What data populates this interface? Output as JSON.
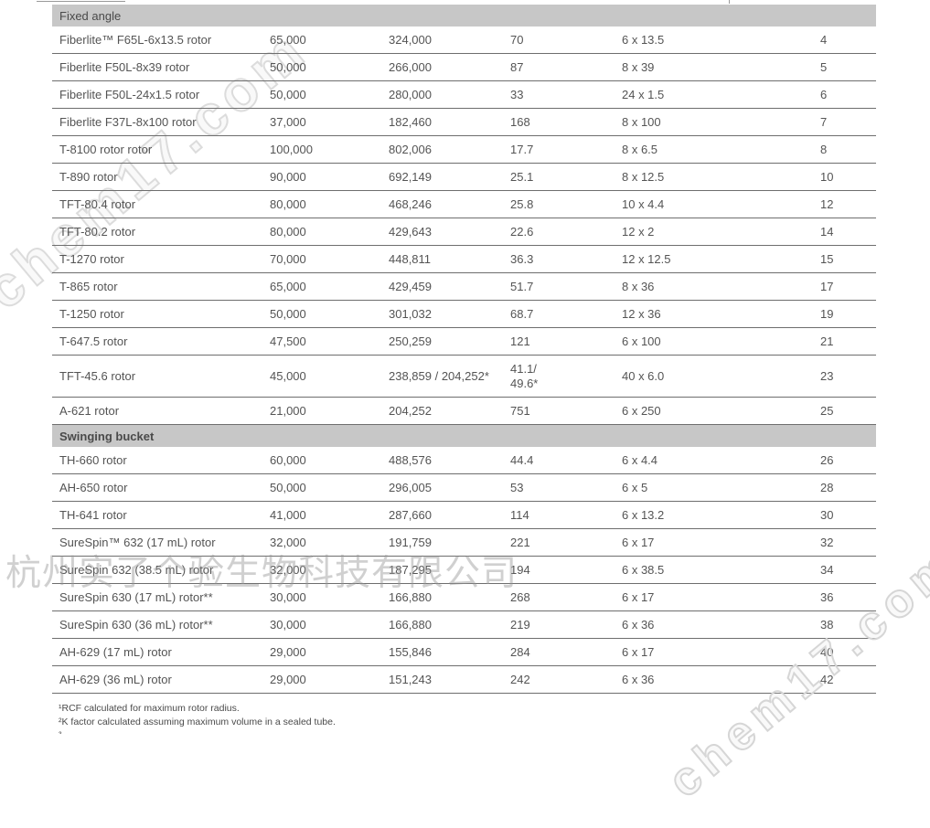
{
  "table": {
    "sections": [
      {
        "label": "Fixed angle",
        "bold": false,
        "rows": [
          {
            "name": "Fiberlite™ F65L-6x13.5 rotor",
            "speed": "65,000",
            "rcf": "324,000",
            "k": "70",
            "tubes": "6 x 13.5",
            "page": "4"
          },
          {
            "name": "Fiberlite F50L-8x39 rotor",
            "speed": "50,000",
            "rcf": "266,000",
            "k": "87",
            "tubes": "8 x 39",
            "page": "5"
          },
          {
            "name": "Fiberlite F50L-24x1.5 rotor",
            "speed": "50,000",
            "rcf": "280,000",
            "k": "33",
            "tubes": "24 x 1.5",
            "page": "6"
          },
          {
            "name": "Fiberlite F37L-8x100 rotor",
            "speed": "37,000",
            "rcf": "182,460",
            "k": "168",
            "tubes": "8 x 100",
            "page": "7"
          },
          {
            "name": "T-8100 rotor rotor",
            "speed": "100,000",
            "rcf": "802,006",
            "k": "17.7",
            "tubes": "8 x 6.5",
            "page": "8"
          },
          {
            "name": "T-890 rotor",
            "speed": "90,000",
            "rcf": "692,149",
            "k": "25.1",
            "tubes": "8 x 12.5",
            "page": "10"
          },
          {
            "name": "TFT-80.4 rotor",
            "speed": "80,000",
            "rcf": "468,246",
            "k": "25.8",
            "tubes": "10 x 4.4",
            "page": "12"
          },
          {
            "name": "TFT-80.2 rotor",
            "speed": "80,000",
            "rcf": "429,643",
            "k": "22.6",
            "tubes": "12 x 2",
            "page": "14"
          },
          {
            "name": "T-1270 rotor",
            "speed": "70,000",
            "rcf": "448,811",
            "k": "36.3",
            "tubes": "12 x 12.5",
            "page": "15"
          },
          {
            "name": "T-865 rotor",
            "speed": "65,000",
            "rcf": "429,459",
            "k": "51.7",
            "tubes": "8 x 36",
            "page": "17"
          },
          {
            "name": "T-1250 rotor",
            "speed": "50,000",
            "rcf": "301,032",
            "k": "68.7",
            "tubes": "12 x 36",
            "page": "19"
          },
          {
            "name": "T-647.5 rotor",
            "speed": "47,500",
            "rcf": "250,259",
            "k": "121",
            "tubes": "6 x 100",
            "page": "21"
          },
          {
            "name": "TFT-45.6 rotor",
            "speed": "45,000",
            "rcf": "238,859 / 204,252*",
            "k": "41.1/\n49.6*",
            "tubes": "40 x 6.0",
            "page": "23",
            "tall": true
          },
          {
            "name": "A-621 rotor",
            "speed": "21,000",
            "rcf": "204,252",
            "k": "751",
            "tubes": "6 x 250",
            "page": "25"
          }
        ]
      },
      {
        "label": "Swinging bucket",
        "bold": true,
        "rows": [
          {
            "name": "TH-660 rotor",
            "speed": "60,000",
            "rcf": "488,576",
            "k": "44.4",
            "tubes": "6 x 4.4",
            "page": "26"
          },
          {
            "name": "AH-650 rotor",
            "speed": "50,000",
            "rcf": "296,005",
            "k": "53",
            "tubes": "6 x 5",
            "page": "28"
          },
          {
            "name": "TH-641 rotor",
            "speed": "41,000",
            "rcf": "287,660",
            "k": "114",
            "tubes": "6 x 13.2",
            "page": "30"
          },
          {
            "name": "SureSpin™ 632 (17 mL) rotor",
            "speed": "32,000",
            "rcf": "191,759",
            "k": "221",
            "tubes": "6 x 17",
            "page": "32"
          },
          {
            "name": "SureSpin 632 (38.5 mL) rotor",
            "speed": "32,000",
            "rcf": "187,295",
            "k": "194",
            "tubes": "6 x 38.5",
            "page": "34"
          },
          {
            "name": "SureSpin 630 (17 mL) rotor**",
            "speed": "30,000",
            "rcf": "166,880",
            "k": "268",
            "tubes": "6 x 17",
            "page": "36"
          },
          {
            "name": "SureSpin 630 (36 mL) rotor**",
            "speed": "30,000",
            "rcf": "166,880",
            "k": "219",
            "tubes": "6 x 36",
            "page": "38"
          },
          {
            "name": "AH-629 (17 mL) rotor",
            "speed": "29,000",
            "rcf": "155,846",
            "k": "284",
            "tubes": "6 x 17",
            "page": "40"
          },
          {
            "name": "AH-629 (36 mL) rotor",
            "speed": "29,000",
            "rcf": "151,243",
            "k": "242",
            "tubes": "6 x 36",
            "page": "42"
          }
        ]
      }
    ]
  },
  "footnotes": {
    "line1": "¹RCF calculated for maximum rotor radius.",
    "line2": "²K factor calculated assuming maximum volume in a sealed tube.",
    "line3": "³"
  },
  "watermarks": {
    "top_left": "chem17.com",
    "center": "杭州实了个验生物科技有限公司",
    "bottom_right": "chem17.com"
  }
}
